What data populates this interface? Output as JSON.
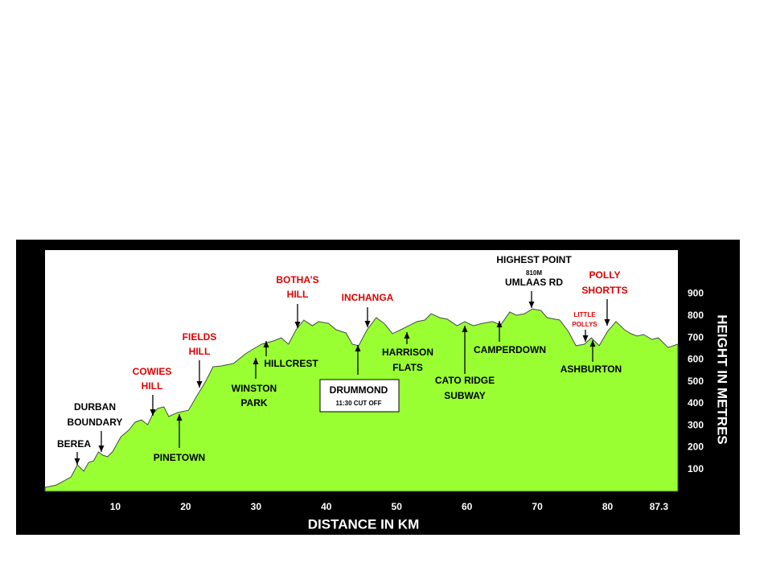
{
  "chart_data": {
    "type": "area",
    "xlabel": "DISTANCE IN KM",
    "ylabel": "HEIGHT IN METRES",
    "color": "#99ff33",
    "xlim": [
      0,
      90
    ],
    "xticks": [
      10,
      20,
      30,
      40,
      50,
      60,
      70,
      80,
      87.3
    ],
    "ylim": [
      0,
      1100
    ],
    "yticks": [
      100,
      200,
      300,
      400,
      500,
      600,
      700,
      800,
      900
    ],
    "x": [
      0,
      1.6,
      2.7,
      3.7,
      4.6,
      5.5,
      6.2,
      6.9,
      7.6,
      8.2,
      8.9,
      9.6,
      10.8,
      11.9,
      12.8,
      13.7,
      14.6,
      15.3,
      16.0,
      16.9,
      17.6,
      18.8,
      20.4,
      21.6,
      22.8,
      23.9,
      25.1,
      26.8,
      28.5,
      29.6,
      30.8,
      32.5,
      33.6,
      34.6,
      35.7,
      36.8,
      38.0,
      38.9,
      40.3,
      41.4,
      42.8,
      43.7,
      44.6,
      45.8,
      47.1,
      48.3,
      49.4,
      50.6,
      51.7,
      52.9,
      54.0,
      54.9,
      56.1,
      57.2,
      58.6,
      59.7,
      60.9,
      62.2,
      63.6,
      64.8,
      66.1,
      67.0,
      68.2,
      69.3,
      70.5,
      71.4,
      73.2,
      74.4,
      75.5,
      76.7,
      77.7,
      78.8,
      80.0,
      81.2,
      82.4,
      83.3,
      84.2,
      85.1,
      86.3,
      87.2,
      88.6,
      90.0
    ],
    "values": [
      18,
      29,
      48,
      66,
      121,
      92,
      132,
      139,
      180,
      165,
      158,
      180,
      249,
      279,
      315,
      326,
      304,
      352,
      378,
      385,
      341,
      359,
      370,
      436,
      499,
      568,
      572,
      583,
      627,
      649,
      671,
      686,
      700,
      671,
      737,
      781,
      755,
      774,
      766,
      737,
      722,
      671,
      664,
      737,
      792,
      763,
      719,
      737,
      755,
      774,
      781,
      810,
      792,
      785,
      755,
      774,
      755,
      766,
      774,
      759,
      818,
      803,
      810,
      832,
      825,
      792,
      781,
      730,
      664,
      671,
      700,
      664,
      730,
      774,
      737,
      719,
      708,
      715,
      693,
      700,
      656,
      671
    ],
    "annotations": [
      {
        "lines": [
          "BEREA"
        ],
        "color": "#000000"
      },
      {
        "lines": [
          "DURBAN",
          "BOUNDARY"
        ],
        "color": "#000000"
      },
      {
        "lines": [
          "COWIES",
          "HILL"
        ],
        "color": "#e00000"
      },
      {
        "lines": [
          "PINETOWN"
        ],
        "color": "#000000"
      },
      {
        "lines": [
          "FIELDS",
          "HILL"
        ],
        "color": "#e00000"
      },
      {
        "lines": [
          "WINSTON",
          "PARK"
        ],
        "color": "#000000"
      },
      {
        "lines": [
          "HILLCREST"
        ],
        "color": "#000000"
      },
      {
        "lines": [
          "BOTHA’S",
          "HILL"
        ],
        "color": "#e00000"
      },
      {
        "lines": [
          "INCHANGA"
        ],
        "color": "#e00000"
      },
      {
        "lines": [
          "DRUMMOND",
          "11:30 CUT OFF"
        ],
        "color": "#000000"
      },
      {
        "lines": [
          "HARRISON",
          "FLATS"
        ],
        "color": "#000000"
      },
      {
        "lines": [
          "CATO RIDGE",
          "SUBWAY"
        ],
        "color": "#000000"
      },
      {
        "lines": [
          "CAMPERDOWN"
        ],
        "color": "#000000"
      },
      {
        "lines": [
          "HIGHEST POINT",
          "810M",
          "UMLAAS RD"
        ],
        "color": "#000000"
      },
      {
        "lines": [
          "LITTLE",
          "POLLYS"
        ],
        "color": "#e00000"
      },
      {
        "lines": [
          "ASHBURTON"
        ],
        "color": "#000000"
      },
      {
        "lines": [
          "POLLY",
          "SHORTTS"
        ],
        "color": "#e00000"
      }
    ]
  }
}
